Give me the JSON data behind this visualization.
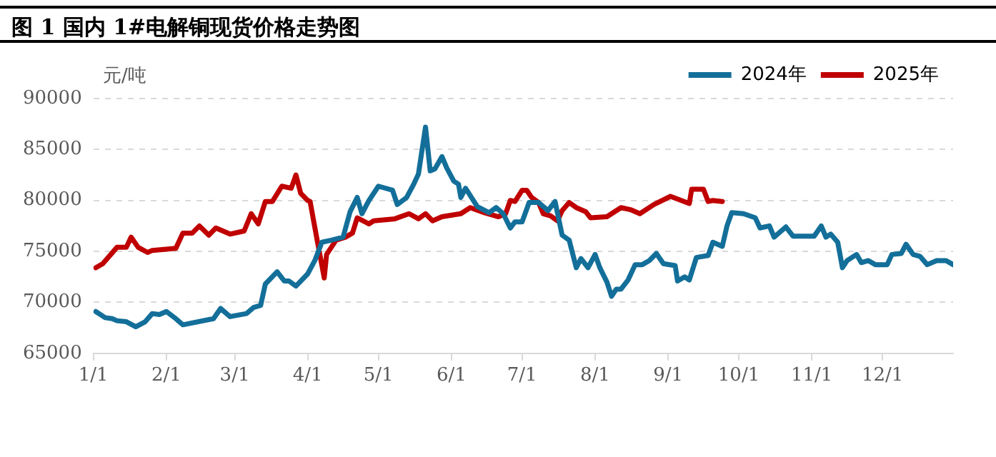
{
  "chart_data": {
    "type": "line",
    "title": "图 1 国内 1#电解铜现货价格走势图",
    "ylabel": "元/吨",
    "xlim": [
      "--01-01",
      "--12-31"
    ],
    "xticks": [
      {
        "value": "--01-01",
        "label": "1/1"
      },
      {
        "value": "--02-01",
        "label": "2/1"
      },
      {
        "value": "--03-01",
        "label": "3/1"
      },
      {
        "value": "--04-01",
        "label": "4/1"
      },
      {
        "value": "--05-01",
        "label": "5/1"
      },
      {
        "value": "--06-01",
        "label": "6/1"
      },
      {
        "value": "--07-01",
        "label": "7/1"
      },
      {
        "value": "--08-01",
        "label": "8/1"
      },
      {
        "value": "--09-01",
        "label": "9/1"
      },
      {
        "value": "--10-01",
        "label": "10/1"
      },
      {
        "value": "--11-01",
        "label": "11/1"
      },
      {
        "value": "--12-01",
        "label": "12/1"
      }
    ],
    "ylim": [
      65000,
      90000
    ],
    "yticks": [
      65000,
      70000,
      75000,
      80000,
      85000,
      90000
    ],
    "grid": "y",
    "legend": "top right",
    "marker": "none",
    "line_style": "solid",
    "series": [
      {
        "name": "2024年",
        "color": "#136f99",
        "x": [
          "--01-02",
          "--01-06",
          "--01-09",
          "--01-11",
          "--01-15",
          "--01-19",
          "--01-23",
          "--01-26",
          "--01-29",
          "--02-01",
          "--02-05",
          "--02-08",
          "--02-21",
          "--02-24",
          "--02-28",
          "--03-06",
          "--03-09",
          "--03-12",
          "--03-14",
          "--03-19",
          "--03-22",
          "--03-24",
          "--03-27",
          "--04-01",
          "--04-04",
          "--04-07",
          "--04-11",
          "--04-16",
          "--04-19",
          "--04-22",
          "--04-24",
          "--04-27",
          "--05-01",
          "--05-07",
          "--05-09",
          "--05-13",
          "--05-16",
          "--05-18",
          "--05-21",
          "--05-23",
          "--05-25",
          "--05-28",
          "--05-30",
          "--06-02",
          "--06-04",
          "--06-05",
          "--06-07",
          "--06-12",
          "--06-17",
          "--06-20",
          "--06-23",
          "--06-26",
          "--06-28",
          "--07-01",
          "--07-04",
          "--07-08",
          "--07-12",
          "--07-15",
          "--07-18",
          "--07-21",
          "--07-24",
          "--07-26",
          "--07-29",
          "--08-01",
          "--08-03",
          "--08-06",
          "--08-08",
          "--08-10",
          "--08-12",
          "--08-15",
          "--08-18",
          "--08-21",
          "--08-24",
          "--08-27",
          "--08-30",
          "--09-04",
          "--09-05",
          "--09-08",
          "--09-10",
          "--09-13",
          "--09-18",
          "--09-20",
          "--09-24",
          "--09-26",
          "--09-28",
          "--10-03",
          "--10-08",
          "--10-10",
          "--10-14",
          "--10-16",
          "--10-18",
          "--10-21",
          "--10-24",
          "--11-02",
          "--11-05",
          "--11-07",
          "--11-09",
          "--11-12",
          "--11-14",
          "--11-16",
          "--11-20",
          "--11-22",
          "--11-25",
          "--11-28",
          "--12-03",
          "--12-05",
          "--12-09",
          "--12-11",
          "--12-14",
          "--12-17",
          "--12-20",
          "--12-24",
          "--12-28",
          "--12-31"
        ],
        "values": [
          69100,
          68500,
          68400,
          68200,
          68100,
          67600,
          68100,
          68900,
          68800,
          69100,
          68400,
          67800,
          68400,
          69400,
          68600,
          68900,
          69500,
          69700,
          71800,
          73000,
          72100,
          72100,
          71600,
          72800,
          74100,
          75900,
          76100,
          76400,
          78900,
          80300,
          78700,
          80000,
          81400,
          81000,
          79600,
          80300,
          81600,
          82600,
          87200,
          82900,
          83100,
          84300,
          83200,
          81900,
          81600,
          80300,
          81200,
          79400,
          78800,
          79300,
          78700,
          77300,
          77900,
          77900,
          79800,
          79800,
          79000,
          79900,
          76600,
          76100,
          73400,
          74300,
          73400,
          74700,
          73400,
          72000,
          70600,
          71300,
          71300,
          72200,
          73700,
          73700,
          74100,
          74800,
          73800,
          73600,
          72100,
          72500,
          72200,
          74400,
          74600,
          75900,
          75500,
          77500,
          78800,
          78700,
          78300,
          77300,
          77500,
          76400,
          76800,
          77400,
          76500,
          76500,
          77500,
          76400,
          76700,
          75900,
          73400,
          74100,
          74700,
          73900,
          74100,
          73700,
          73700,
          74700,
          74800,
          75700,
          74700,
          74500,
          73700,
          74100,
          74100,
          73700
        ]
      },
      {
        "name": "2025年",
        "color": "#c00000",
        "x": [
          "--01-02",
          "--01-05",
          "--01-11",
          "--01-15",
          "--01-17",
          "--01-20",
          "--01-24",
          "--01-26",
          "--02-05",
          "--02-08",
          "--02-12",
          "--02-15",
          "--02-19",
          "--02-22",
          "--02-28",
          "--03-05",
          "--03-08",
          "--03-11",
          "--03-14",
          "--03-17",
          "--03-21",
          "--03-25",
          "--03-27",
          "--03-29",
          "--04-01",
          "--04-02",
          "--04-05",
          "--04-08",
          "--04-09",
          "--04-13",
          "--04-17",
          "--04-20",
          "--04-22",
          "--04-27",
          "--04-29",
          "--05-08",
          "--05-14",
          "--05-18",
          "--05-21",
          "--05-24",
          "--05-28",
          "--06-05",
          "--06-09",
          "--06-15",
          "--06-21",
          "--06-24",
          "--06-26",
          "--06-28",
          "--07-01",
          "--07-03",
          "--07-05",
          "--07-08",
          "--07-10",
          "--07-13",
          "--07-16",
          "--07-18",
          "--07-21",
          "--07-24",
          "--07-28",
          "--07-30",
          "--08-06",
          "--08-12",
          "--08-16",
          "--08-20",
          "--08-26",
          "--09-02",
          "--09-10",
          "--09-11",
          "--09-16",
          "--09-18",
          "--09-20",
          "--09-24"
        ],
        "values": [
          73400,
          73800,
          75400,
          75400,
          76400,
          75400,
          74900,
          75100,
          75300,
          76800,
          76800,
          77500,
          76600,
          77300,
          76700,
          77000,
          78700,
          77700,
          79900,
          79900,
          81400,
          81200,
          82500,
          80700,
          80000,
          79900,
          76100,
          72400,
          74700,
          76100,
          76400,
          76800,
          78300,
          77700,
          78000,
          78200,
          78700,
          78200,
          78700,
          78000,
          78400,
          78700,
          79300,
          78800,
          78400,
          78700,
          80000,
          79900,
          81000,
          81000,
          80300,
          79800,
          78700,
          78500,
          78000,
          79000,
          79800,
          79300,
          78900,
          78300,
          78400,
          79300,
          79100,
          78700,
          79600,
          80400,
          79700,
          81100,
          81100,
          79900,
          80000,
          79900
        ]
      }
    ]
  }
}
